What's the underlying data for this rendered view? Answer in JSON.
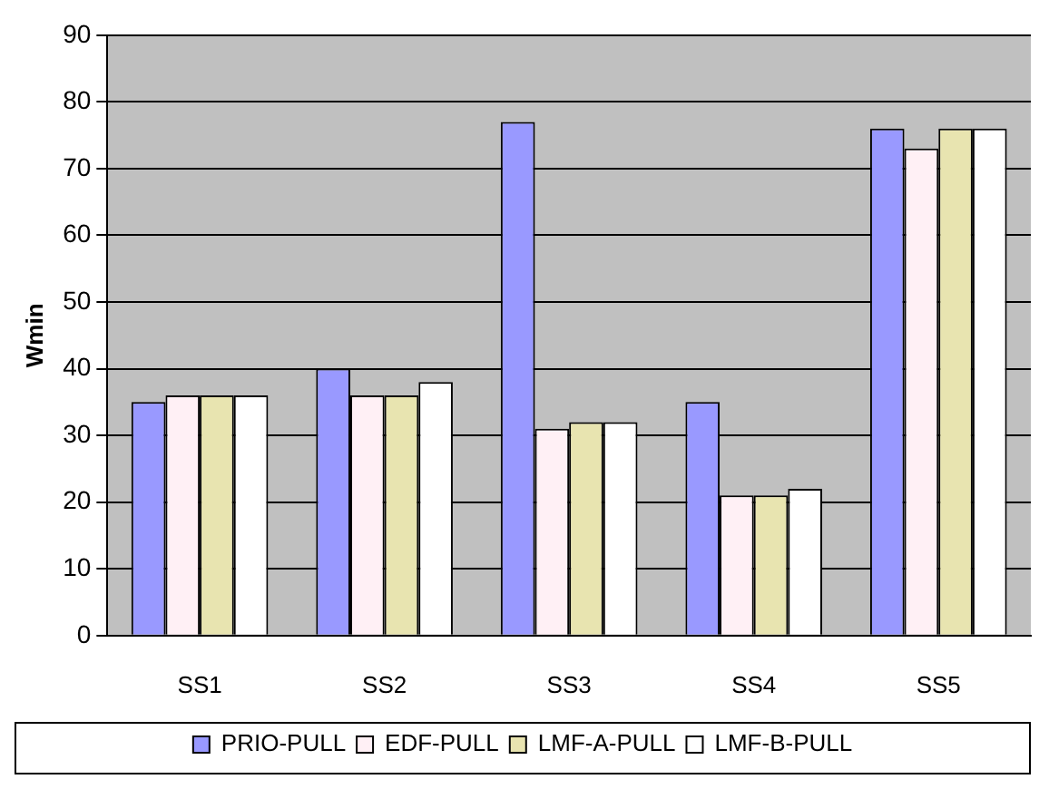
{
  "chart_data": {
    "type": "bar",
    "ylabel": "Wmin",
    "categories": [
      "SS1",
      "SS2",
      "SS3",
      "SS4",
      "SS5"
    ],
    "series": [
      {
        "name": "PRIO-PULL",
        "color": "#9999ff",
        "values": [
          35,
          40,
          77,
          35,
          76
        ]
      },
      {
        "name": "EDF-PULL",
        "color": "#fff0f5",
        "values": [
          36,
          36,
          31,
          21,
          73
        ]
      },
      {
        "name": "LMF-A-PULL",
        "color": "#e8e4b0",
        "values": [
          36,
          36,
          32,
          21,
          76
        ]
      },
      {
        "name": "LMF-B-PULL",
        "color": "#ffffff",
        "values": [
          36,
          38,
          32,
          22,
          76
        ]
      }
    ],
    "ylim": [
      0,
      90
    ],
    "yticks": [
      0,
      10,
      20,
      30,
      40,
      50,
      60,
      70,
      80,
      90
    ],
    "grid": "y",
    "legend": "bottom"
  }
}
